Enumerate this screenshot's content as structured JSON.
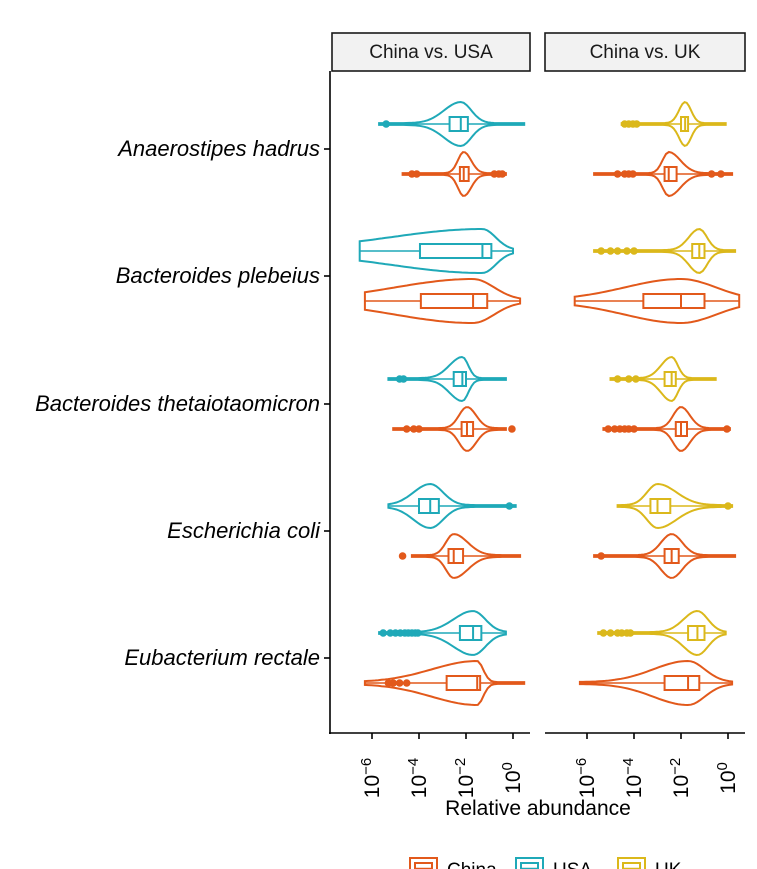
{
  "chart_data": {
    "type": "violin",
    "xlabel": "Relative abundance",
    "x_scale": "log10",
    "x_tick_labels": [
      {
        "base": "10",
        "exp": "−6",
        "value": 1e-06
      },
      {
        "base": "10",
        "exp": "−4",
        "value": 0.0001
      },
      {
        "base": "10",
        "exp": "−2",
        "value": 0.01
      },
      {
        "base": "10",
        "exp": "0",
        "value": 1
      }
    ],
    "xlim": [
      1e-07,
      100
    ],
    "categories": [
      "Anaerostipes hadrus",
      "Bacteroides plebeius",
      "Bacteroides thetaiotaomicron",
      "Escherichia coli",
      "Eubacterium rectale"
    ],
    "colors": {
      "China": "#e2591b",
      "USA": "#1fa9b8",
      "UK": "#dbb81b"
    },
    "legend": {
      "position": "bottom",
      "entries": [
        "China",
        "USA",
        "UK"
      ]
    },
    "panels": [
      {
        "strip": "China vs. USA",
        "series": [
          {
            "name": "China",
            "data": [
              {
                "category": "Anaerostipes hadrus",
                "min": 2e-05,
                "q1": 0.0055,
                "median": 0.008,
                "q3": 0.013,
                "max": 0.5,
                "outliers": [
                  5e-05,
                  8e-05,
                  0.16,
                  0.25,
                  0.35
                ]
              },
              {
                "category": "Bacteroides plebeius",
                "min": 5e-07,
                "q1": 0.00012,
                "median": 0.02,
                "q3": 0.08,
                "max": 2
              },
              {
                "category": "Bacteroides thetaiotaomicron",
                "min": 8e-06,
                "q1": 0.0065,
                "median": 0.011,
                "q3": 0.02,
                "max": 0.5,
                "outliers": [
                  3e-05,
                  6e-05,
                  0.0001,
                  0.9
                ]
              },
              {
                "category": "Escherichia coli",
                "min": 5e-05,
                "q1": 0.0018,
                "median": 0.003,
                "q3": 0.0075,
                "max": 2,
                "outliers": [
                  2e-05
                ]
              },
              {
                "category": "Eubacterium rectale",
                "min": 5e-07,
                "q1": 0.0015,
                "median": 0.03,
                "q3": 0.04,
                "max": 3,
                "outliers": [
                  1.5e-05,
                  3e-05,
                  8e-06,
                  5e-06
                ]
              }
            ]
          },
          {
            "name": "USA",
            "data": [
              {
                "category": "Anaerostipes hadrus",
                "min": 2e-06,
                "q1": 0.002,
                "median": 0.006,
                "q3": 0.012,
                "max": 3,
                "outliers": [
                  4e-06
                ]
              },
              {
                "category": "Bacteroides plebeius",
                "min": 3e-07,
                "q1": 0.00011,
                "median": 0.05,
                "q3": 0.12,
                "max": 1
              },
              {
                "category": "Bacteroides thetaiotaomicron",
                "min": 5e-06,
                "q1": 0.003,
                "median": 0.007,
                "q3": 0.01,
                "max": 0.5,
                "outliers": [
                  1.5e-05,
                  2.2e-05
                ]
              },
              {
                "category": "Escherichia coli",
                "min": 5e-06,
                "q1": 0.0001,
                "median": 0.0003,
                "q3": 0.0007,
                "max": 1.3,
                "outliers": [
                  0.7
                ]
              },
              {
                "category": "Eubacterium rectale",
                "min": 2e-06,
                "q1": 0.0055,
                "median": 0.02,
                "q3": 0.045,
                "max": 0.5,
                "outliers": [
                  3e-06,
                  6e-06,
                  1e-05,
                  1.6e-05,
                  2.5e-05,
                  3.5e-05,
                  5e-05,
                  7e-05,
                  9e-05
                ]
              }
            ]
          }
        ]
      },
      {
        "strip": "China vs. UK",
        "series": [
          {
            "name": "China",
            "data": [
              {
                "category": "Anaerostipes hadrus",
                "min": 2e-06,
                "q1": 0.002,
                "median": 0.003,
                "q3": 0.0065,
                "max": 1.5,
                "outliers": [
                  2e-05,
                  4e-05,
                  6e-05,
                  9e-05,
                  0.2,
                  0.5
                ]
              },
              {
                "category": "Bacteroides plebeius",
                "min": 3e-07,
                "q1": 0.00025,
                "median": 0.01,
                "q3": 0.1,
                "max": 3
              },
              {
                "category": "Bacteroides thetaiotaomicron",
                "min": 5e-06,
                "q1": 0.006,
                "median": 0.01,
                "q3": 0.018,
                "max": 1.2,
                "outliers": [
                  8e-06,
                  1.5e-05,
                  2.5e-05,
                  4e-05,
                  6e-05,
                  0.0001,
                  0.9
                ]
              },
              {
                "category": "Escherichia coli",
                "min": 2e-06,
                "q1": 0.002,
                "median": 0.004,
                "q3": 0.008,
                "max": 2,
                "outliers": [
                  4e-06
                ]
              },
              {
                "category": "Eubacterium rectale",
                "min": 5e-07,
                "q1": 0.002,
                "median": 0.02,
                "q3": 0.06,
                "max": 1.5
              }
            ]
          },
          {
            "name": "UK",
            "data": [
              {
                "category": "Anaerostipes hadrus",
                "min": 3e-05,
                "q1": 0.01,
                "median": 0.015,
                "q3": 0.02,
                "max": 0.8,
                "outliers": [
                  4e-05,
                  6e-05,
                  9e-05,
                  0.00013
                ]
              },
              {
                "category": "Bacteroides plebeius",
                "min": 2e-06,
                "q1": 0.03,
                "median": 0.06,
                "q3": 0.1,
                "max": 2,
                "outliers": [
                  4e-06,
                  1e-05,
                  2e-05,
                  5e-05,
                  0.0001
                ]
              },
              {
                "category": "Bacteroides thetaiotaomicron",
                "min": 1e-05,
                "q1": 0.002,
                "median": 0.004,
                "q3": 0.006,
                "max": 0.3,
                "outliers": [
                  2e-05,
                  6e-05,
                  0.00012
                ]
              },
              {
                "category": "Escherichia coli",
                "min": 2e-05,
                "q1": 0.0005,
                "median": 0.001,
                "q3": 0.0035,
                "max": 1.5,
                "outliers": [
                  1
                ]
              },
              {
                "category": "Eubacterium rectale",
                "min": 3e-06,
                "q1": 0.02,
                "median": 0.05,
                "q3": 0.1,
                "max": 0.8,
                "outliers": [
                  5e-06,
                  1e-05,
                  2e-05,
                  3e-05,
                  5e-05,
                  7e-05
                ]
              }
            ]
          }
        ]
      }
    ]
  }
}
